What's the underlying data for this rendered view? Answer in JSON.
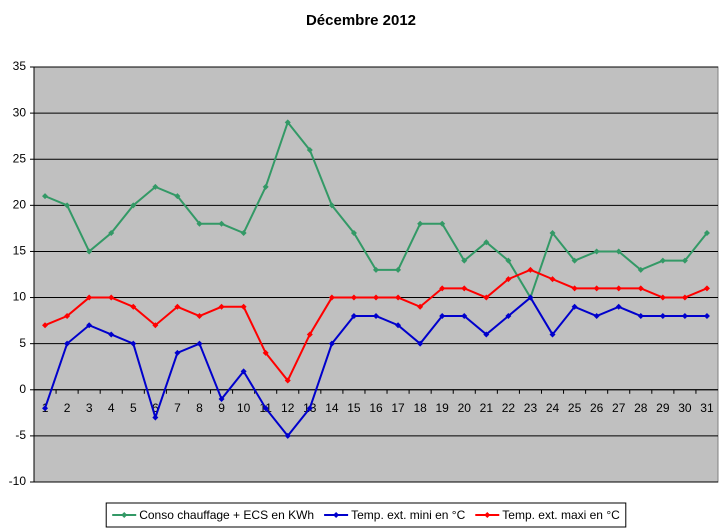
{
  "chart_data": {
    "type": "line",
    "title": "Décembre 2012",
    "categories": [
      "1",
      "2",
      "3",
      "4",
      "5",
      "6",
      "7",
      "8",
      "9",
      "10",
      "11",
      "12",
      "13",
      "14",
      "15",
      "16",
      "17",
      "18",
      "19",
      "20",
      "21",
      "22",
      "23",
      "24",
      "25",
      "26",
      "27",
      "28",
      "29",
      "30",
      "31"
    ],
    "series": [
      {
        "name": "Conso chauffage + ECS en KWh",
        "color": "#339966",
        "values": [
          21,
          20,
          15,
          17,
          20,
          22,
          21,
          18,
          18,
          17,
          22,
          29,
          26,
          20,
          17,
          13,
          13,
          18,
          18,
          14,
          16,
          14,
          10,
          17,
          14,
          15,
          15,
          13,
          14,
          14,
          17
        ]
      },
      {
        "name": "Temp. ext. mini en °C",
        "color": "#0000cc",
        "values": [
          -2,
          5,
          7,
          6,
          5,
          -3,
          4,
          5,
          -1,
          2,
          -2,
          -5,
          -2,
          5,
          8,
          8,
          7,
          5,
          8,
          8,
          6,
          8,
          10,
          6,
          9,
          8,
          9,
          8,
          8,
          8,
          8
        ]
      },
      {
        "name": "Temp. ext. maxi en °C",
        "color": "#ff0000",
        "values": [
          7,
          8,
          10,
          10,
          9,
          7,
          9,
          8,
          9,
          9,
          4,
          1,
          6,
          10,
          10,
          10,
          10,
          9,
          11,
          11,
          10,
          12,
          13,
          12,
          11,
          11,
          11,
          11,
          10,
          10,
          11
        ]
      }
    ],
    "ylim": [
      -10,
      35
    ],
    "yticks": [
      -10,
      -5,
      0,
      5,
      10,
      15,
      20,
      25,
      30,
      35
    ],
    "grid": true,
    "legend": "bottom"
  }
}
